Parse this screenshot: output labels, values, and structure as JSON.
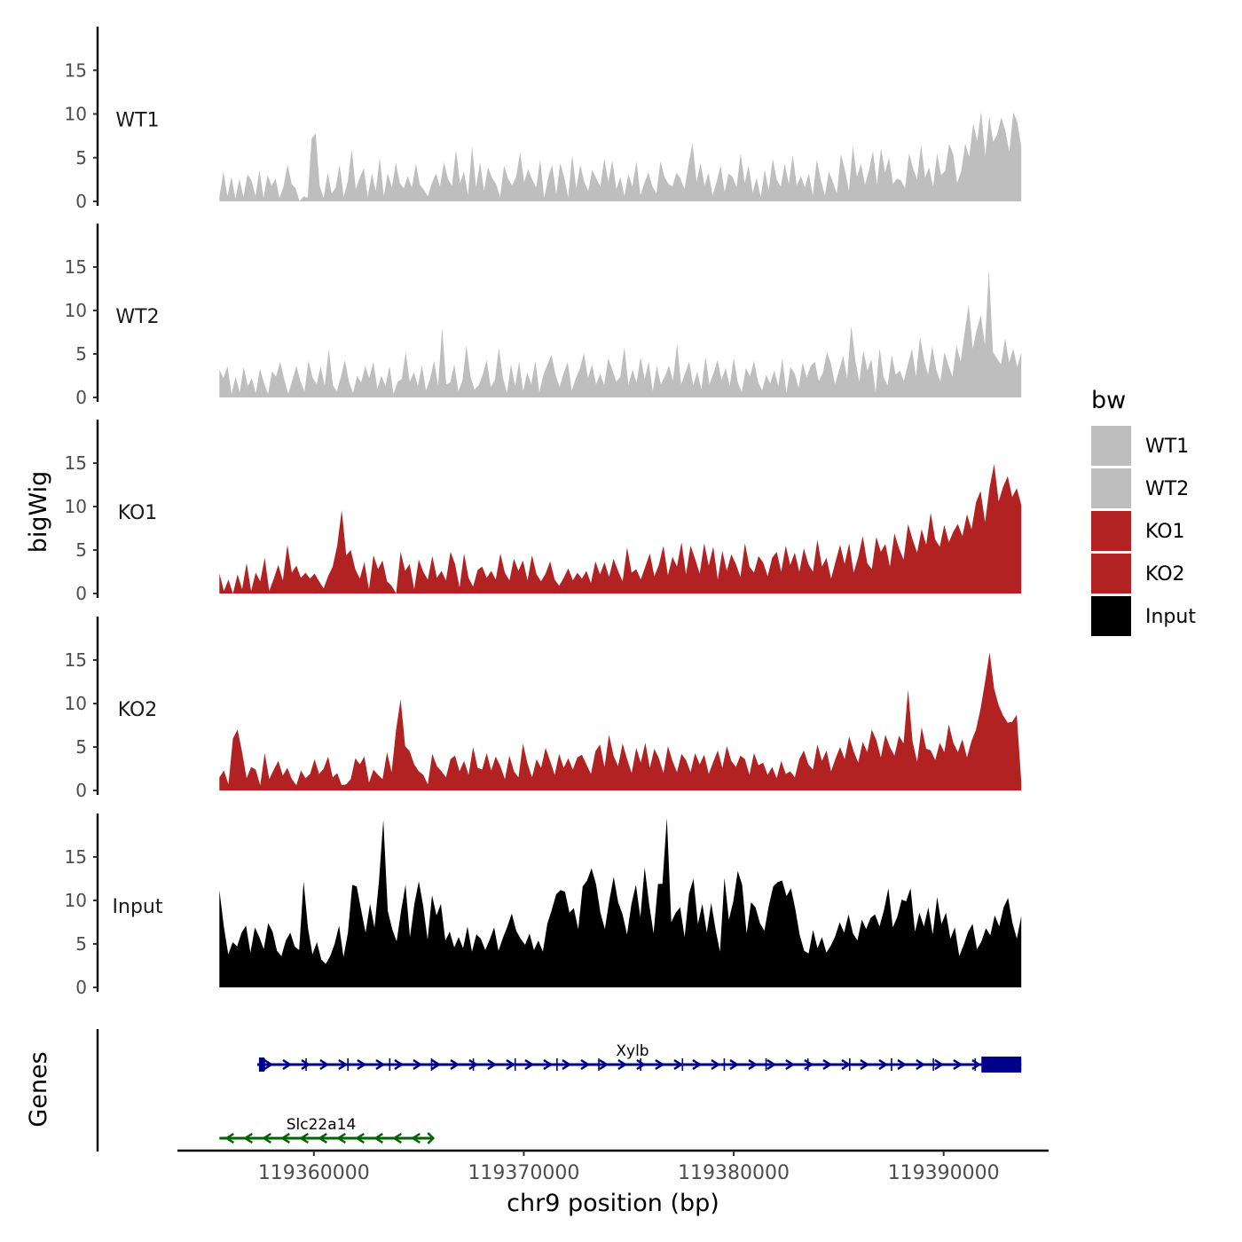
{
  "chart_data": {
    "type": "area",
    "title": "",
    "xlabel": "chr9 position (bp)",
    "ylabel": "bigWig",
    "genes_label": "Genes",
    "xlim": [
      119353500,
      119395000
    ],
    "x_ticks": [
      119360000,
      119370000,
      119380000,
      119390000
    ],
    "x_tick_labels": [
      "119360000",
      "119370000",
      "119380000",
      "119390000"
    ],
    "ylim": [
      0,
      20
    ],
    "y_ticks": [
      0,
      5,
      10,
      15
    ],
    "y_tick_labels": [
      "0",
      "5",
      "10",
      "15"
    ],
    "data_range": [
      119355500,
      119393700
    ],
    "legend": {
      "title": "bw",
      "position": "right",
      "entries": [
        {
          "label": "WT1",
          "color": "#bebebe"
        },
        {
          "label": "WT2",
          "color": "#bebebe"
        },
        {
          "label": "KO1",
          "color": "#b22222"
        },
        {
          "label": "KO2",
          "color": "#b22222"
        },
        {
          "label": "Input",
          "color": "#000000"
        }
      ]
    },
    "series": [
      {
        "name": "WT1",
        "color": "#bebebe",
        "values": [
          0.5,
          3.4,
          0.6,
          2.8,
          0.3,
          2.6,
          0.5,
          3.1,
          2.4,
          0.6,
          3.6,
          0.4,
          3.0,
          1.8,
          2.6,
          0.4,
          1.7,
          4.2,
          2.0,
          1.5,
          0.0,
          0.6,
          0.4,
          7.2,
          7.8,
          1.8,
          0.4,
          3.3,
          0.9,
          1.6,
          4.2,
          0.5,
          2.3,
          6.0,
          1.4,
          2.7,
          3.8,
          0.5,
          3.2,
          1.2,
          5.0,
          0.6,
          3.2,
          1.6,
          4.4,
          2.1,
          1.5,
          2.9,
          1.6,
          4.3,
          1.9,
          1.3,
          0.6,
          2.1,
          3.2,
          1.7,
          4.5,
          2.6,
          1.8,
          5.9,
          2.1,
          3.4,
          0.7,
          6.3,
          1.6,
          4.5,
          1.2,
          3.9,
          2.7,
          2.0,
          0.5,
          4.1,
          2.6,
          1.8,
          2.8,
          5.6,
          2.2,
          3.7,
          2.5,
          1.6,
          4.8,
          0.4,
          2.7,
          4.2,
          0.8,
          4.4,
          2.7,
          0.5,
          5.3,
          1.5,
          4.2,
          2.2,
          1.2,
          3.6,
          2.6,
          1.7,
          4.9,
          2.2,
          4.7,
          1.4,
          2.8,
          0.6,
          3.1,
          1.7,
          4.6,
          0.7,
          2.1,
          3.3,
          1.7,
          0.9,
          4.6,
          2.8,
          2.0,
          1.7,
          3.3,
          2.6,
          1.4,
          4.2,
          6.7,
          2.2,
          4.4,
          1.8,
          3.3,
          0.7,
          2.2,
          4.1,
          1.1,
          3.2,
          2.8,
          1.6,
          5.5,
          2.1,
          4.1,
          1.0,
          2.7,
          0.5,
          3.6,
          1.3,
          4.9,
          2.5,
          1.7,
          4.3,
          2.0,
          5.3,
          1.8,
          2.9,
          1.6,
          3.2,
          0.7,
          4.8,
          2.4,
          0.7,
          3.4,
          2.2,
          0.9,
          5.4,
          3.6,
          1.2,
          6.3,
          2.8,
          4.3,
          1.9,
          3.5,
          5.8,
          1.9,
          6.1,
          3.3,
          5.0,
          2.0,
          2.6,
          2.4,
          1.5,
          5.5,
          3.8,
          2.5,
          6.5,
          2.7,
          3.9,
          1.7,
          5.5,
          3.0,
          3.5,
          6.6,
          5.4,
          2.1,
          3.4,
          6.6,
          5.1,
          8.9,
          6.9,
          10.3,
          5.2,
          9.7,
          6.8,
          7.7,
          9.6,
          8.1,
          5.7,
          10.2,
          9.1,
          6.3
        ]
      },
      {
        "name": "WT2",
        "color": "#bebebe",
        "values": [
          3.2,
          2.2,
          3.6,
          0.4,
          2.4,
          0.6,
          3.5,
          1.3,
          2.2,
          0.5,
          3.3,
          1.7,
          0.4,
          3.0,
          2.4,
          4.1,
          2.1,
          0.4,
          2.0,
          3.6,
          1.9,
          0.7,
          4.2,
          2.3,
          1.5,
          3.6,
          1.3,
          5.6,
          1.4,
          0.7,
          2.4,
          4.3,
          1.8,
          0.5,
          2.5,
          1.7,
          3.6,
          2.2,
          4.1,
          1.0,
          2.5,
          1.3,
          3.6,
          0.4,
          1.8,
          2.1,
          5.2,
          1.8,
          2.9,
          1.3,
          3.7,
          0.8,
          2.1,
          4.2,
          1.4,
          8.0,
          1.5,
          1.7,
          3.8,
          0.7,
          1.9,
          6.0,
          2.4,
          0.9,
          1.4,
          2.6,
          4.3,
          1.2,
          2.0,
          5.7,
          2.3,
          0.5,
          3.8,
          1.3,
          4.1,
          0.7,
          2.9,
          1.5,
          4.2,
          0.6,
          2.6,
          3.8,
          4.9,
          2.6,
          1.2,
          2.8,
          4.1,
          0.8,
          2.2,
          3.3,
          5.1,
          2.2,
          3.8,
          1.5,
          2.7,
          1.4,
          4.5,
          3.2,
          1.8,
          2.4,
          5.8,
          1.4,
          3.2,
          1.7,
          4.6,
          2.1,
          4.1,
          0.7,
          3.6,
          1.5,
          2.4,
          3.7,
          1.9,
          6.2,
          1.5,
          2.8,
          4.1,
          1.4,
          3.0,
          0.9,
          4.7,
          1.5,
          2.8,
          4.3,
          2.0,
          3.4,
          1.3,
          4.5,
          1.7,
          0.6,
          3.4,
          2.4,
          4.2,
          1.8,
          0.8,
          2.6,
          1.6,
          3.1,
          1.3,
          4.5,
          0.5,
          3.5,
          2.8,
          1.1,
          4.0,
          2.3,
          3.6,
          4.1,
          1.9,
          2.8,
          5.2,
          3.9,
          1.5,
          3.1,
          4.8,
          2.2,
          8.3,
          4.3,
          1.8,
          5.4,
          3.1,
          4.4,
          0.6,
          5.7,
          2.3,
          1.4,
          4.9,
          2.6,
          3.1,
          1.9,
          3.8,
          5.6,
          2.4,
          7.0,
          4.3,
          2.6,
          5.9,
          3.2,
          1.8,
          5.2,
          3.7,
          2.4,
          6.0,
          4.1,
          7.4,
          10.7,
          5.6,
          7.8,
          9.5,
          6.0,
          14.7,
          5.2,
          4.5,
          3.8,
          6.8,
          4.0,
          5.6,
          3.5,
          5.2
        ]
      },
      {
        "name": "KO1",
        "color": "#b22222",
        "values": [
          2.3,
          0.3,
          1.6,
          0.0,
          2.2,
          0.5,
          3.5,
          0.3,
          2.4,
          1.4,
          4.1,
          0.3,
          1.7,
          3.3,
          1.5,
          5.6,
          2.4,
          3.2,
          1.8,
          2.4,
          1.7,
          2.3,
          1.4,
          0.6,
          2.0,
          3.1,
          5.5,
          9.6,
          4.4,
          5.0,
          2.8,
          1.7,
          3.6,
          0.5,
          4.4,
          2.8,
          3.8,
          1.4,
          0.9,
          0.0,
          4.8,
          2.6,
          3.4,
          0.5,
          3.9,
          2.5,
          1.6,
          4.3,
          1.8,
          2.6,
          1.5,
          4.8,
          3.4,
          0.7,
          4.6,
          1.8,
          0.8,
          2.7,
          3.1,
          1.8,
          2.6,
          1.6,
          4.6,
          2.4,
          1.5,
          4.0,
          2.6,
          3.8,
          1.5,
          4.4,
          2.2,
          1.4,
          2.3,
          3.7,
          1.6,
          0.9,
          1.8,
          2.9,
          1.5,
          2.4,
          1.7,
          2.6,
          1.2,
          3.7,
          2.2,
          3.6,
          1.9,
          4.0,
          2.6,
          1.4,
          5.3,
          2.4,
          2.8,
          1.6,
          3.1,
          4.6,
          2.0,
          3.3,
          5.5,
          2.1,
          4.2,
          3.1,
          5.9,
          2.2,
          5.5,
          4.0,
          2.3,
          5.8,
          3.2,
          5.4,
          1.6,
          4.9,
          2.6,
          4.5,
          3.4,
          1.9,
          5.8,
          3.1,
          2.4,
          4.3,
          3.6,
          2.0,
          4.1,
          4.8,
          2.5,
          5.5,
          3.3,
          4.7,
          2.5,
          5.2,
          3.4,
          2.5,
          6.2,
          3.1,
          4.1,
          1.7,
          3.7,
          5.6,
          3.4,
          5.8,
          2.4,
          4.2,
          6.6,
          3.5,
          2.8,
          6.5,
          4.8,
          5.7,
          3.1,
          6.9,
          5.2,
          3.9,
          8.0,
          6.2,
          4.7,
          7.4,
          5.6,
          9.3,
          6.2,
          5.4,
          7.9,
          5.9,
          7.1,
          8.0,
          6.6,
          9.1,
          7.4,
          10.5,
          11.8,
          8.2,
          12.2,
          14.9,
          10.6,
          12.3,
          13.5,
          11.1,
          12.1,
          10.2
        ]
      },
      {
        "name": "KO2",
        "color": "#b22222",
        "values": [
          1.5,
          2.3,
          0.7,
          6.0,
          7.0,
          4.4,
          1.4,
          2.7,
          2.4,
          0.6,
          4.3,
          1.3,
          2.4,
          3.4,
          1.7,
          2.6,
          1.3,
          0.6,
          2.3,
          1.4,
          1.9,
          3.6,
          1.9,
          2.5,
          3.9,
          1.5,
          2.0,
          0.6,
          0.7,
          1.3,
          3.7,
          3.0,
          3.9,
          0.9,
          2.4,
          1.8,
          1.3,
          4.4,
          2.1,
          7.0,
          10.5,
          5.1,
          4.5,
          3.0,
          2.2,
          1.8,
          0.7,
          4.2,
          2.8,
          2.2,
          1.5,
          3.6,
          4.0,
          2.2,
          3.4,
          1.8,
          5.0,
          2.6,
          2.4,
          4.3,
          2.3,
          3.9,
          2.8,
          1.3,
          4.0,
          2.2,
          1.5,
          5.4,
          3.1,
          1.5,
          3.6,
          2.6,
          4.9,
          3.4,
          1.8,
          4.2,
          2.6,
          3.7,
          2.4,
          3.8,
          4.1,
          3.0,
          1.9,
          4.5,
          5.3,
          2.7,
          6.4,
          4.0,
          2.8,
          5.4,
          3.6,
          2.0,
          4.9,
          3.2,
          5.5,
          2.6,
          4.8,
          3.7,
          2.0,
          5.1,
          3.4,
          2.1,
          4.2,
          3.5,
          2.1,
          4.3,
          3.0,
          4.1,
          1.9,
          3.3,
          4.6,
          2.6,
          5.1,
          3.4,
          2.7,
          4.0,
          3.6,
          1.8,
          4.3,
          2.9,
          3.2,
          1.8,
          2.7,
          1.4,
          3.4,
          1.9,
          2.2,
          1.5,
          3.6,
          4.6,
          3.0,
          2.4,
          5.3,
          3.4,
          4.6,
          2.2,
          3.7,
          5.0,
          3.6,
          6.2,
          4.5,
          3.2,
          5.6,
          4.4,
          7.0,
          5.8,
          3.8,
          6.4,
          5.0,
          4.0,
          6.3,
          5.4,
          11.6,
          5.6,
          3.3,
          7.3,
          4.8,
          4.6,
          3.5,
          5.5,
          4.4,
          7.6,
          5.5,
          4.4,
          5.9,
          3.8,
          5.7,
          7.0,
          9.4,
          12.5,
          15.9,
          11.7,
          9.8,
          8.6,
          7.8,
          7.9,
          8.7,
          1.0
        ]
      },
      {
        "name": "Input",
        "color": "#000000",
        "values": [
          11.2,
          7.0,
          3.8,
          5.2,
          4.7,
          6.3,
          7.1,
          4.0,
          6.9,
          5.8,
          4.4,
          7.4,
          6.4,
          4.2,
          3.6,
          5.4,
          6.3,
          4.7,
          4.3,
          12.2,
          6.8,
          3.8,
          5.2,
          3.2,
          2.7,
          3.6,
          5.0,
          7.1,
          3.5,
          6.3,
          11.8,
          11.6,
          8.9,
          6.3,
          9.6,
          6.9,
          12.1,
          19.3,
          8.8,
          6.7,
          5.3,
          8.8,
          11.8,
          5.8,
          9.6,
          12.2,
          9.4,
          5.5,
          10.6,
          8.3,
          9.6,
          5.4,
          6.4,
          4.6,
          5.8,
          4.5,
          7.0,
          4.1,
          6.1,
          5.6,
          4.3,
          5.5,
          6.9,
          4.2,
          5.7,
          7.0,
          8.5,
          6.5,
          5.6,
          4.9,
          6.2,
          4.3,
          5.4,
          4.1,
          7.3,
          8.9,
          10.7,
          11.2,
          11.0,
          8.6,
          9.1,
          6.7,
          11.6,
          12.3,
          13.7,
          11.9,
          8.6,
          6.7,
          10.0,
          12.7,
          9.8,
          8.4,
          6.1,
          9.6,
          11.8,
          8.1,
          13.8,
          9.6,
          6.2,
          11.9,
          11.9,
          19.5,
          7.5,
          8.6,
          9.2,
          5.8,
          10.8,
          12.5,
          7.3,
          9.6,
          6.3,
          9.7,
          6.6,
          4.1,
          12.6,
          7.8,
          9.9,
          13.4,
          11.8,
          6.2,
          9.8,
          9.2,
          7.4,
          6.5,
          9.4,
          11.6,
          12.1,
          12.3,
          10.5,
          11.4,
          9.0,
          6.0,
          4.2,
          3.9,
          6.6,
          4.5,
          5.8,
          4.0,
          4.8,
          5.9,
          7.5,
          6.3,
          8.4,
          6.2,
          5.4,
          7.8,
          6.7,
          8.0,
          8.4,
          7.0,
          8.9,
          11.4,
          6.9,
          8.1,
          10.1,
          9.9,
          11.4,
          6.4,
          8.6,
          7.0,
          9.2,
          6.1,
          10.4,
          7.3,
          8.6,
          5.6,
          6.9,
          3.6,
          4.9,
          6.4,
          7.3,
          4.4,
          5.3,
          6.8,
          6.0,
          8.3,
          7.0,
          9.2,
          10.3,
          7.4,
          5.6,
          8.2
        ]
      }
    ],
    "genes": [
      {
        "name": "Xylb",
        "strand": "+",
        "color": "#00008b",
        "start": 119357300,
        "end": 119393700,
        "thick_start": 119391800,
        "thick_end": 119393700
      },
      {
        "name": "Slc22a14",
        "strand": "-",
        "color": "#006400",
        "start": 119355500,
        "end": 119365600
      }
    ]
  }
}
